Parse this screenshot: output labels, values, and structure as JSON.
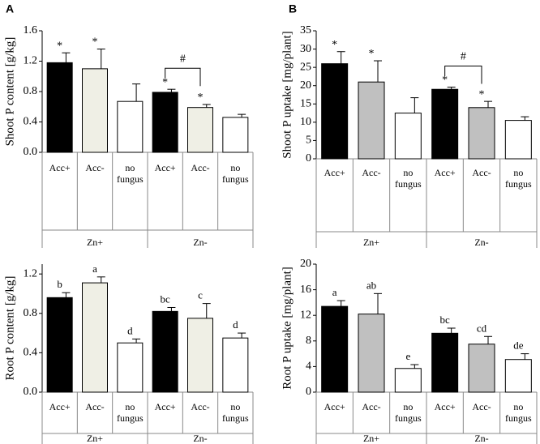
{
  "chart_data": [
    {
      "panel": "A",
      "type": "bar",
      "ylabel": "Shoot P content [g/kg]",
      "ylim": [
        0,
        1.6
      ],
      "yticks": [
        "0.0",
        "0.4",
        "0.8",
        "1.2",
        "1.6"
      ],
      "categories": [
        "Acc+",
        "Acc-",
        "no fungus",
        "Acc+",
        "Acc-",
        "no fungus"
      ],
      "groups": [
        "Zn+",
        "Zn-"
      ],
      "values": [
        1.18,
        1.1,
        0.67,
        0.79,
        0.59,
        0.46
      ],
      "errors": [
        0.13,
        0.26,
        0.23,
        0.04,
        0.04,
        0.04
      ],
      "annotations": [
        "*",
        "*",
        "",
        "*",
        "*",
        ""
      ],
      "fills": [
        "#000000",
        "#efefe5",
        "#ffffff",
        "#000000",
        "#efefe5",
        "#ffffff"
      ],
      "bracket": {
        "from": 3,
        "to": 4,
        "label": "#"
      }
    },
    {
      "panel": "B",
      "type": "bar",
      "ylabel": "Shoot P uptake [mg/plant]",
      "ylim": [
        0,
        35
      ],
      "yticks": [
        "0",
        "5",
        "10",
        "15",
        "20",
        "25",
        "30",
        "35"
      ],
      "categories": [
        "Acc+",
        "Acc-",
        "no fungus",
        "Acc+",
        "Acc-",
        "no fungus"
      ],
      "groups": [
        "Zn+",
        "Zn-"
      ],
      "values": [
        26.0,
        21.0,
        12.5,
        19.0,
        14.0,
        10.5
      ],
      "errors": [
        3.3,
        5.8,
        4.2,
        0.6,
        1.7,
        1.0
      ],
      "annotations": [
        "*",
        "*",
        "",
        "*",
        "*",
        ""
      ],
      "fills": [
        "#000000",
        "#c0c0c0",
        "#ffffff",
        "#000000",
        "#c0c0c0",
        "#ffffff"
      ],
      "bracket": {
        "from": 3,
        "to": 4,
        "label": "#"
      }
    },
    {
      "panel": "",
      "type": "bar",
      "ylabel": "Root P content [g/kg]",
      "ylim": [
        0,
        1.3
      ],
      "yticks": [
        "0.0",
        "0.4",
        "0.8",
        "1.2"
      ],
      "ytick_values": [
        0,
        0.4,
        0.8,
        1.2
      ],
      "categories": [
        "Acc+",
        "Acc-",
        "no fungus",
        "Acc+",
        "Acc-",
        "no fungus"
      ],
      "groups": [
        "Zn+",
        "Zn-"
      ],
      "values": [
        0.96,
        1.11,
        0.5,
        0.82,
        0.75,
        0.55
      ],
      "errors": [
        0.05,
        0.06,
        0.04,
        0.04,
        0.15,
        0.05
      ],
      "annotations": [
        "b",
        "a",
        "d",
        "bc",
        "c",
        "d"
      ],
      "fills": [
        "#000000",
        "#efefe5",
        "#ffffff",
        "#000000",
        "#efefe5",
        "#ffffff"
      ]
    },
    {
      "panel": "",
      "type": "bar",
      "ylabel": "Root P uptake [mg/plant]",
      "ylim": [
        0,
        20
      ],
      "yticks": [
        "0",
        "4",
        "8",
        "12",
        "16",
        "20"
      ],
      "categories": [
        "Acc+",
        "Acc-",
        "no fungus",
        "Acc+",
        "Acc-",
        "no fungus"
      ],
      "groups": [
        "Zn+",
        "Zn-"
      ],
      "values": [
        13.4,
        12.2,
        3.7,
        9.2,
        7.5,
        5.1
      ],
      "errors": [
        0.9,
        3.2,
        0.6,
        0.8,
        1.2,
        0.9
      ],
      "annotations": [
        "a",
        "ab",
        "e",
        "bc",
        "cd",
        "de"
      ],
      "fills": [
        "#000000",
        "#c0c0c0",
        "#ffffff",
        "#000000",
        "#c0c0c0",
        "#ffffff"
      ]
    }
  ]
}
